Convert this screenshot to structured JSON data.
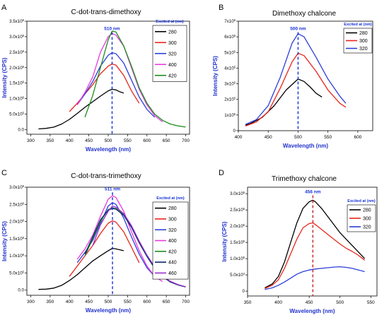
{
  "chart_data": [
    {
      "type": "line",
      "panel": "A",
      "title": "C-dot-trans-dimethoxy",
      "xlabel": "Wavelength (nm)",
      "ylabel": "Intensity (CPS)",
      "xlim": [
        290,
        710
      ],
      "xticks": [
        300,
        350,
        400,
        450,
        500,
        550,
        600,
        650,
        700
      ],
      "ylim": [
        -150000.0,
        3500000.0
      ],
      "yticks": [
        0,
        500000,
        1000000,
        1500000,
        2000000,
        2500000,
        3000000,
        3500000
      ],
      "ytick_labels": [
        "0.0",
        "5.0x10^5",
        "1.0x10^6",
        "1.5x10^6",
        "2.0x10^6",
        "2.5x10^6",
        "3.0x10^6",
        "3.5x10^6"
      ],
      "legend_title": "Excited at (nm)",
      "legend_position": "top-right",
      "annotation": {
        "text": "510 nm",
        "x": 510,
        "y": 3150000.0
      },
      "series": [
        {
          "name": "280",
          "color": "#000000",
          "x": [
            320,
            340,
            360,
            380,
            400,
            420,
            440,
            460,
            480,
            500,
            510,
            520,
            530,
            540
          ],
          "y": [
            20000,
            40000,
            80000,
            180000,
            330000,
            520000,
            720000,
            900000,
            1080000,
            1250000,
            1300000,
            1280000,
            1220000,
            1180000
          ]
        },
        {
          "name": "300",
          "color": "#e8261c",
          "x": [
            400,
            420,
            440,
            460,
            480,
            500,
            510,
            520,
            540,
            560,
            580
          ],
          "y": [
            580000,
            850000,
            1150000,
            1450000,
            1800000,
            2050000,
            2120000,
            2080000,
            1750000,
            1250000,
            850000
          ]
        },
        {
          "name": "320",
          "color": "#2c3fd8",
          "x": [
            420,
            440,
            460,
            480,
            500,
            510,
            520,
            540,
            560,
            580,
            600,
            620
          ],
          "y": [
            800000,
            1150000,
            1550000,
            2050000,
            2400000,
            2480000,
            2450000,
            2150000,
            1600000,
            1050000,
            650000,
            400000
          ]
        },
        {
          "name": "400",
          "color": "#e83be0",
          "x": [
            420,
            440,
            460,
            480,
            500,
            510,
            520,
            540,
            560,
            580,
            600,
            620,
            640
          ],
          "y": [
            800000,
            1200000,
            1700000,
            2500000,
            3000000,
            3100000,
            3050000,
            2700000,
            2000000,
            1300000,
            800000,
            450000,
            250000
          ]
        },
        {
          "name": "420",
          "color": "#1f8c1f",
          "x": [
            440,
            460,
            480,
            500,
            510,
            520,
            540,
            560,
            580,
            600,
            620,
            640,
            660,
            680,
            700
          ],
          "y": [
            400000,
            1100000,
            2000000,
            2900000,
            3180000,
            3150000,
            2700000,
            2050000,
            1350000,
            850000,
            500000,
            300000,
            180000,
            120000,
            80000
          ]
        }
      ]
    },
    {
      "type": "line",
      "panel": "B",
      "title": "Dimethoxy chalcone",
      "xlabel": "Wavelength (nm)",
      "ylabel": "Intensity (CPS)",
      "xlim": [
        400,
        625
      ],
      "xticks": [
        400,
        450,
        500,
        550,
        600
      ],
      "ylim": [
        0,
        700000.0
      ],
      "yticks": [
        0,
        100000,
        200000,
        300000,
        400000,
        500000,
        600000,
        700000
      ],
      "ytick_labels": [
        "0",
        "1x10^5",
        "2x10^5",
        "3x10^5",
        "4x10^5",
        "5x10^5",
        "6x10^5",
        "7x10^5"
      ],
      "legend_title": "Excited at (nm)",
      "legend_position": "top-right",
      "annotation": {
        "text": "500 nm",
        "x": 500,
        "y": 630000.0
      },
      "series": [
        {
          "name": "280",
          "color": "#000000",
          "x": [
            412,
            420,
            440,
            460,
            480,
            500,
            510,
            520,
            530,
            540
          ],
          "y": [
            35000,
            45000,
            85000,
            160000,
            260000,
            330000,
            315000,
            280000,
            240000,
            215000
          ]
        },
        {
          "name": "300",
          "color": "#e8261c",
          "x": [
            412,
            430,
            450,
            470,
            490,
            500,
            510,
            530,
            550,
            570,
            580
          ],
          "y": [
            30000,
            55000,
            120000,
            270000,
            440000,
            495000,
            480000,
            380000,
            260000,
            175000,
            150000
          ]
        },
        {
          "name": "320",
          "color": "#2c3fd8",
          "x": [
            412,
            430,
            450,
            470,
            490,
            500,
            510,
            530,
            550,
            570,
            580
          ],
          "y": [
            40000,
            70000,
            160000,
            340000,
            560000,
            620000,
            600000,
            470000,
            330000,
            220000,
            175000
          ]
        }
      ]
    },
    {
      "type": "line",
      "panel": "C",
      "title": "C-dot-trans-trimethoxy",
      "xlabel": "Wavelength (nm)",
      "ylabel": "Intensity (CPS)",
      "xlim": [
        290,
        710
      ],
      "xticks": [
        300,
        350,
        400,
        450,
        500,
        550,
        600,
        650,
        700
      ],
      "ylim": [
        -150000.0,
        3000000.0
      ],
      "yticks": [
        0,
        500000,
        1000000,
        1500000,
        2000000,
        2500000,
        3000000
      ],
      "ytick_labels": [
        "0.0",
        "5.0x10^5",
        "1.0x10^6",
        "1.5x10^6",
        "2.0x10^6",
        "2.5x10^6",
        "3.0x10^6"
      ],
      "legend_title": "Excited at (nm)",
      "legend_position": "top-right",
      "annotation": {
        "text": "511 nm",
        "x": 511,
        "y": 2850000.0
      },
      "series": [
        {
          "name": "280",
          "color": "#000000",
          "x": [
            320,
            340,
            360,
            380,
            400,
            420,
            440,
            460,
            480,
            500,
            511,
            520,
            540
          ],
          "y": [
            20000,
            30000,
            60000,
            140000,
            280000,
            450000,
            650000,
            850000,
            1000000,
            1150000,
            1220000,
            1200000,
            1150000
          ]
        },
        {
          "name": "300",
          "color": "#e8261c",
          "x": [
            400,
            420,
            440,
            460,
            480,
            500,
            511,
            520,
            540,
            560,
            580
          ],
          "y": [
            400000,
            700000,
            1000000,
            1300000,
            1650000,
            1950000,
            2020000,
            1980000,
            1700000,
            1250000,
            800000
          ]
        },
        {
          "name": "320",
          "color": "#2c3fd8",
          "x": [
            420,
            440,
            460,
            480,
            500,
            511,
            520,
            540,
            560,
            580,
            600,
            620
          ],
          "y": [
            800000,
            1100000,
            1450000,
            1950000,
            2450000,
            2550000,
            2500000,
            2100000,
            1550000,
            1050000,
            650000,
            400000
          ]
        },
        {
          "name": "400",
          "color": "#e83be0",
          "x": [
            420,
            440,
            460,
            480,
            500,
            511,
            520,
            540,
            560,
            580,
            600,
            620,
            640
          ],
          "y": [
            900000,
            1200000,
            1600000,
            2150000,
            2650000,
            2750000,
            2700000,
            2300000,
            1700000,
            1150000,
            700000,
            400000,
            250000
          ]
        },
        {
          "name": "420",
          "color": "#1f8c1f",
          "x": [
            440,
            460,
            480,
            500,
            511,
            520,
            540,
            560,
            580,
            600,
            620,
            640,
            660,
            680,
            700
          ],
          "y": [
            1000000,
            1500000,
            2000000,
            2350000,
            2400000,
            2380000,
            2200000,
            1850000,
            1400000,
            1000000,
            650000,
            400000,
            250000,
            150000,
            100000
          ]
        },
        {
          "name": "440",
          "color": "#0a2a6b",
          "x": [
            440,
            460,
            480,
            500,
            511,
            520,
            540,
            560,
            580,
            600,
            620,
            640,
            660,
            680,
            700
          ],
          "y": [
            1050000,
            1550000,
            2050000,
            2330000,
            2380000,
            2360000,
            2180000,
            1830000,
            1380000,
            980000,
            640000,
            400000,
            240000,
            150000,
            90000
          ]
        },
        {
          "name": "460",
          "color": "#9b2fd0",
          "x": [
            460,
            480,
            500,
            511,
            520,
            540,
            560,
            580,
            600,
            620,
            640,
            660,
            680,
            700
          ],
          "y": [
            1300000,
            1900000,
            2300000,
            2450000,
            2420000,
            2230000,
            1880000,
            1430000,
            1020000,
            680000,
            420000,
            260000,
            160000,
            100000
          ]
        }
      ]
    },
    {
      "type": "line",
      "panel": "D",
      "title": "Trimethoxy chalcone",
      "xlabel": "Wavelength (nm)",
      "ylabel": "Intensity (CPS)",
      "xlim": [
        350,
        560
      ],
      "xticks": [
        350,
        400,
        450,
        500,
        550
      ],
      "ylim": [
        -15000.0,
        320000.0
      ],
      "yticks": [
        0,
        50000,
        100000,
        150000,
        200000,
        250000,
        300000
      ],
      "ytick_labels": [
        "0",
        "5.0x10^4",
        "1.0x10^5",
        "1.5x10^5",
        "2.0x10^5",
        "2.5x10^5",
        "3.0x10^5"
      ],
      "legend_title": "Excited at (nm)",
      "legend_position": "top-right",
      "annotation": {
        "text": "456 nm",
        "x": 456,
        "y": 295000.0
      },
      "series": [
        {
          "name": "280",
          "color": "#000000",
          "x": [
            378,
            390,
            400,
            410,
            420,
            430,
            440,
            450,
            456,
            460,
            470,
            480,
            490,
            500,
            510,
            520,
            530,
            540
          ],
          "y": [
            10000,
            22000,
            45000,
            90000,
            150000,
            210000,
            255000,
            275000,
            280000,
            275000,
            255000,
            230000,
            205000,
            180000,
            160000,
            140000,
            120000,
            100000
          ]
        },
        {
          "name": "300",
          "color": "#e8261c",
          "x": [
            378,
            390,
            400,
            410,
            420,
            430,
            440,
            450,
            456,
            460,
            470,
            480,
            490,
            500,
            510,
            520,
            530,
            540
          ],
          "y": [
            8000,
            18000,
            35000,
            70000,
            115000,
            160000,
            195000,
            208000,
            210000,
            205000,
            190000,
            175000,
            160000,
            145000,
            132000,
            122000,
            110000,
            95000
          ]
        },
        {
          "name": "320",
          "color": "#2c3fd8",
          "x": [
            378,
            390,
            400,
            410,
            420,
            430,
            440,
            450,
            460,
            470,
            480,
            490,
            500,
            510,
            520,
            530,
            540
          ],
          "y": [
            5000,
            10000,
            18000,
            28000,
            40000,
            52000,
            60000,
            65000,
            68000,
            70000,
            72000,
            74000,
            75000,
            73000,
            70000,
            65000,
            60000
          ]
        }
      ]
    }
  ],
  "panel_labels": [
    "A",
    "B",
    "C",
    "D"
  ]
}
